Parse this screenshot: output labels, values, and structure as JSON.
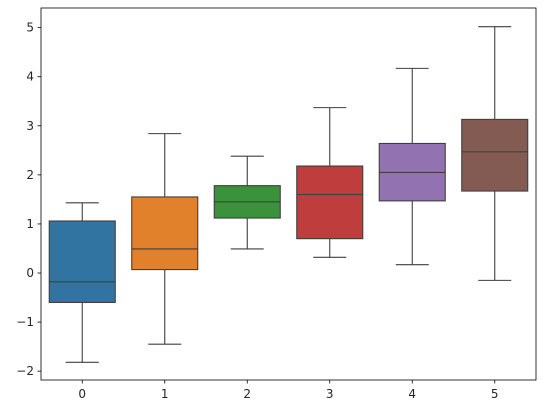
{
  "chart_data": {
    "type": "box",
    "title": "",
    "xlabel": "",
    "ylabel": "",
    "categories": [
      "0",
      "1",
      "2",
      "3",
      "4",
      "5"
    ],
    "xlim": [
      -0.5,
      5.5
    ],
    "ylim": [
      -2.18,
      5.4
    ],
    "yticks": [
      -2,
      -1,
      0,
      1,
      2,
      3,
      4,
      5
    ],
    "yticklabels": [
      "−2",
      "−1",
      "0",
      "1",
      "2",
      "3",
      "4",
      "5"
    ],
    "grid": false,
    "legend": "none",
    "boxes": [
      {
        "category": "0",
        "whisker_low": -1.82,
        "q1": -0.6,
        "median": -0.18,
        "q3": 1.06,
        "whisker_high": 1.43,
        "color": "#3274a1"
      },
      {
        "category": "1",
        "whisker_low": -1.45,
        "q1": 0.07,
        "median": 0.49,
        "q3": 1.55,
        "whisker_high": 2.84,
        "color": "#e1812c"
      },
      {
        "category": "2",
        "whisker_low": 0.49,
        "q1": 1.12,
        "median": 1.45,
        "q3": 1.78,
        "whisker_high": 2.38,
        "color": "#3a923a"
      },
      {
        "category": "3",
        "whisker_low": 0.32,
        "q1": 0.7,
        "median": 1.6,
        "q3": 2.18,
        "whisker_high": 3.37,
        "color": "#c03d3e"
      },
      {
        "category": "4",
        "whisker_low": 0.17,
        "q1": 1.47,
        "median": 2.05,
        "q3": 2.64,
        "whisker_high": 4.17,
        "color": "#9372b2"
      },
      {
        "category": "5",
        "whisker_low": -0.15,
        "q1": 1.67,
        "median": 2.47,
        "q3": 3.13,
        "whisker_high": 5.02,
        "color": "#845b53"
      }
    ]
  }
}
